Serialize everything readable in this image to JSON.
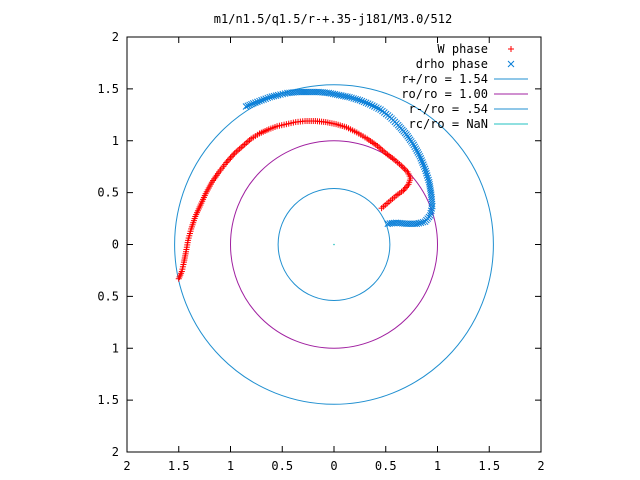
{
  "chart_data": {
    "type": "scatter",
    "title": "m1/n1.5/q1.5/r-+.35-j181/M3.0/512",
    "xlabel": "",
    "ylabel": "",
    "xlim": [
      -2,
      2
    ],
    "ylim": [
      -2,
      2
    ],
    "x_tick_values": [
      -2,
      -1.5,
      -1,
      -0.5,
      0,
      0.5,
      1,
      1.5,
      2
    ],
    "x_tick_labels": [
      "2",
      "1.5",
      "1",
      "0.5",
      "0",
      "0.5",
      "1",
      "1.5",
      "2"
    ],
    "y_tick_values": [
      2,
      1.5,
      1,
      0.5,
      0,
      -0.5,
      -1,
      -1.5,
      -2
    ],
    "y_tick_labels": [
      "2",
      "1.5",
      "1",
      "0.5",
      "0",
      "0.5",
      "1",
      "1.5",
      "2"
    ],
    "grid": false,
    "legend_position": "top-right",
    "series": [
      {
        "name": "W phase",
        "kind": "points",
        "marker": "+",
        "color": "#ff0000",
        "points": [
          [
            -1.5,
            -0.33
          ],
          [
            -1.47,
            -0.26
          ],
          [
            -1.45,
            -0.17
          ],
          [
            -1.43,
            -0.07
          ],
          [
            -1.41,
            0.04
          ],
          [
            -1.38,
            0.15
          ],
          [
            -1.34,
            0.27
          ],
          [
            -1.29,
            0.38
          ],
          [
            -1.24,
            0.49
          ],
          [
            -1.18,
            0.6
          ],
          [
            -1.11,
            0.7
          ],
          [
            -1.04,
            0.79
          ],
          [
            -0.96,
            0.88
          ],
          [
            -0.88,
            0.95
          ],
          [
            -0.8,
            1.02
          ],
          [
            -0.72,
            1.07
          ],
          [
            -0.63,
            1.11
          ],
          [
            -0.55,
            1.14
          ],
          [
            -0.46,
            1.16
          ],
          [
            -0.37,
            1.18
          ],
          [
            -0.28,
            1.19
          ],
          [
            -0.18,
            1.19
          ],
          [
            -0.08,
            1.18
          ],
          [
            0.02,
            1.16
          ],
          [
            0.12,
            1.13
          ],
          [
            0.22,
            1.08
          ],
          [
            0.32,
            1.02
          ],
          [
            0.42,
            0.95
          ],
          [
            0.5,
            0.88
          ],
          [
            0.58,
            0.82
          ],
          [
            0.65,
            0.76
          ],
          [
            0.71,
            0.7
          ],
          [
            0.74,
            0.64
          ],
          [
            0.72,
            0.58
          ],
          [
            0.67,
            0.52
          ],
          [
            0.6,
            0.47
          ],
          [
            0.53,
            0.41
          ],
          [
            0.46,
            0.35
          ]
        ]
      },
      {
        "name": "drho phase",
        "kind": "points",
        "marker": "x",
        "color": "#0a7fd8",
        "points": [
          [
            -0.85,
            1.33
          ],
          [
            -0.78,
            1.36
          ],
          [
            -0.7,
            1.39
          ],
          [
            -0.62,
            1.42
          ],
          [
            -0.54,
            1.44
          ],
          [
            -0.45,
            1.46
          ],
          [
            -0.35,
            1.47
          ],
          [
            -0.25,
            1.47
          ],
          [
            -0.15,
            1.47
          ],
          [
            -0.05,
            1.46
          ],
          [
            0.05,
            1.44
          ],
          [
            0.15,
            1.42
          ],
          [
            0.25,
            1.39
          ],
          [
            0.35,
            1.35
          ],
          [
            0.45,
            1.3
          ],
          [
            0.54,
            1.23
          ],
          [
            0.62,
            1.15
          ],
          [
            0.7,
            1.06
          ],
          [
            0.77,
            0.96
          ],
          [
            0.83,
            0.85
          ],
          [
            0.88,
            0.73
          ],
          [
            0.92,
            0.6
          ],
          [
            0.94,
            0.48
          ],
          [
            0.95,
            0.37
          ],
          [
            0.93,
            0.28
          ],
          [
            0.88,
            0.22
          ],
          [
            0.8,
            0.2
          ],
          [
            0.7,
            0.2
          ],
          [
            0.6,
            0.21
          ],
          [
            0.52,
            0.2
          ]
        ]
      },
      {
        "name": "r+/ro = 1.54",
        "kind": "circle",
        "radius": 1.54,
        "color": "#1f8fd0"
      },
      {
        "name": "ro/ro = 1.00",
        "kind": "circle",
        "radius": 1.0,
        "color": "#a020a0"
      },
      {
        "name": "r-/ro = .54",
        "kind": "circle",
        "radius": 0.54,
        "color": "#1f8fd0"
      },
      {
        "name": "rc/ro = NaN",
        "kind": "circle",
        "radius": null,
        "color": "#20c0c0"
      }
    ]
  }
}
